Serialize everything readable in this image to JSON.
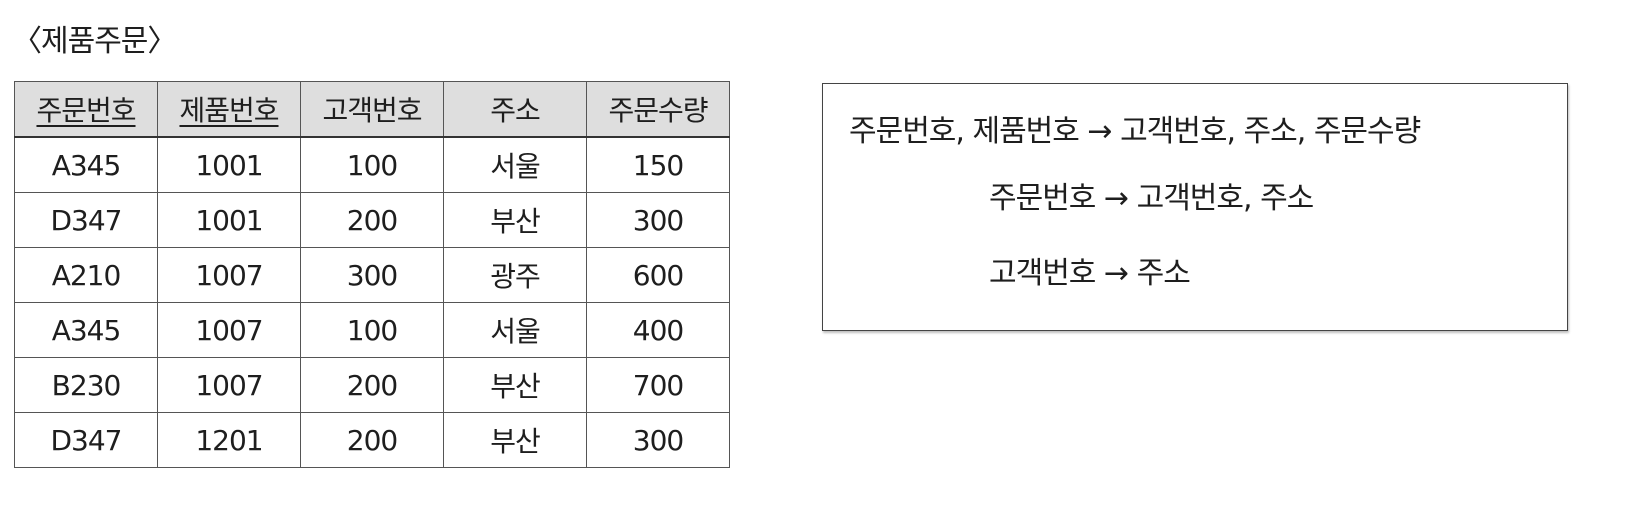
{
  "title": "〈제품주문〉",
  "table": {
    "headers": [
      {
        "label": "주문번호",
        "key": true
      },
      {
        "label": "제품번호",
        "key": true
      },
      {
        "label": "고객번호",
        "key": false
      },
      {
        "label": "주소",
        "key": false
      },
      {
        "label": "주문수량",
        "key": false
      }
    ],
    "rows": [
      [
        "A345",
        "1001",
        "100",
        "서울",
        "150"
      ],
      [
        "D347",
        "1001",
        "200",
        "부산",
        "300"
      ],
      [
        "A210",
        "1007",
        "300",
        "광주",
        "600"
      ],
      [
        "A345",
        "1007",
        "100",
        "서울",
        "400"
      ],
      [
        "B230",
        "1007",
        "200",
        "부산",
        "700"
      ],
      [
        "D347",
        "1201",
        "200",
        "부산",
        "300"
      ]
    ]
  },
  "dependencies": [
    "주문번호, 제품번호 → 고객번호, 주소, 주문수량",
    "주문번호 → 고객번호, 주소",
    "고객번호 → 주소"
  ]
}
